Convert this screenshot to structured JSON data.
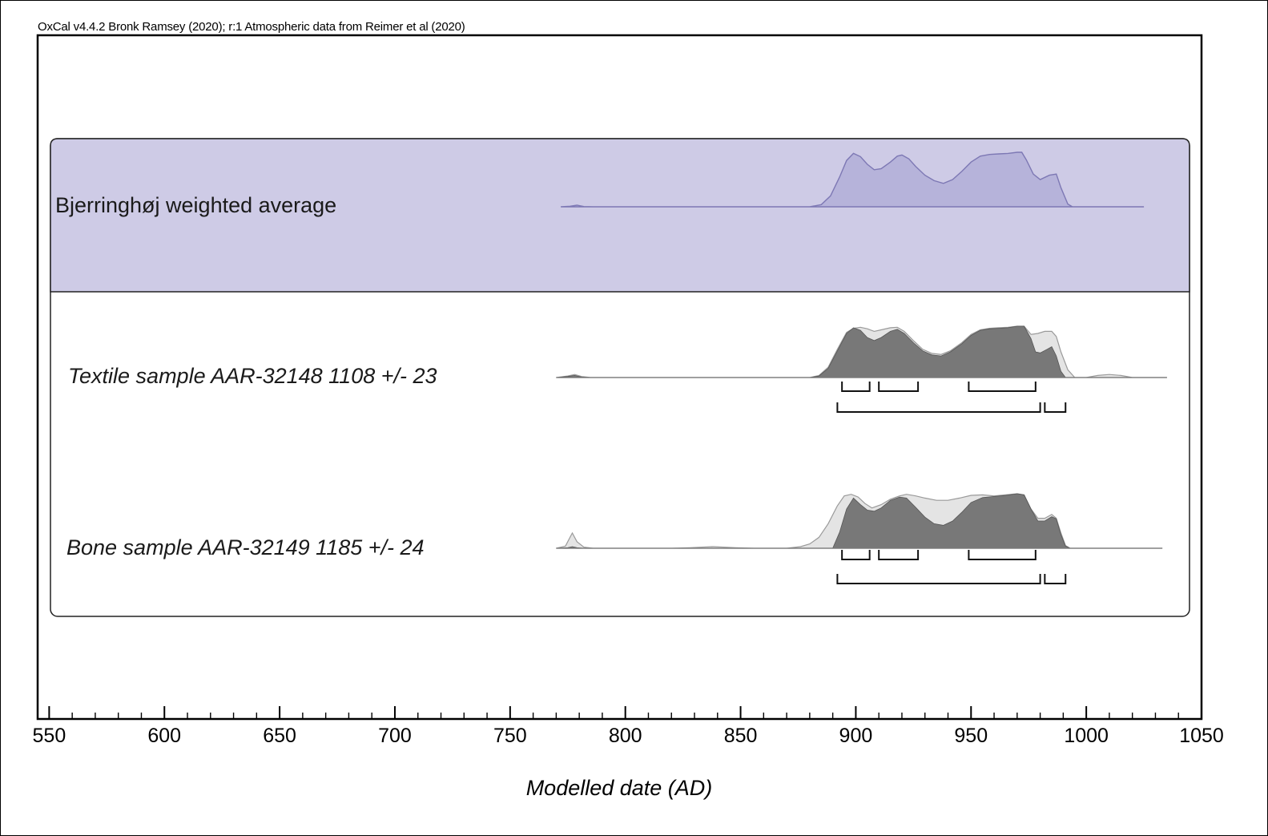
{
  "credit": "OxCal v4.4.2 Bronk Ramsey (2020); r:1 Atmospheric data from Reimer et al (2020)",
  "chart_data": {
    "type": "area",
    "xlabel": "Modelled date (AD)",
    "xlim": [
      545,
      1050
    ],
    "xticks": [
      550,
      600,
      650,
      700,
      750,
      800,
      850,
      900,
      950,
      1000,
      1050
    ],
    "xtick_labels": [
      "550",
      "600",
      "650",
      "700",
      "750",
      "800",
      "850",
      "900",
      "950",
      "1000",
      "1050"
    ],
    "colors": {
      "group_fill": "#cecbe6",
      "avg_fill": "#b6b3da",
      "avg_stroke": "#7d78b4",
      "posterior_fill": "#787878",
      "prior_fill": "#e4e4e4",
      "prior_stroke": "#9a9a9a"
    },
    "group": {
      "name": "Bjerringhøj weighted average"
    },
    "series": [
      {
        "name": "Bjerringhøj weighted average",
        "kind": "weighted_average",
        "posterior": [
          [
            772,
            0
          ],
          [
            776,
            0.01
          ],
          [
            779,
            0.03
          ],
          [
            782,
            0.005
          ],
          [
            786,
            0
          ],
          [
            880,
            0
          ],
          [
            885,
            0.04
          ],
          [
            889,
            0.2
          ],
          [
            893,
            0.55
          ],
          [
            896,
            0.85
          ],
          [
            899,
            0.98
          ],
          [
            902,
            0.92
          ],
          [
            905,
            0.78
          ],
          [
            908,
            0.68
          ],
          [
            911,
            0.7
          ],
          [
            915,
            0.82
          ],
          [
            918,
            0.93
          ],
          [
            920,
            0.95
          ],
          [
            923,
            0.88
          ],
          [
            926,
            0.74
          ],
          [
            930,
            0.58
          ],
          [
            934,
            0.48
          ],
          [
            938,
            0.43
          ],
          [
            942,
            0.5
          ],
          [
            946,
            0.65
          ],
          [
            950,
            0.82
          ],
          [
            954,
            0.93
          ],
          [
            958,
            0.96
          ],
          [
            962,
            0.97
          ],
          [
            966,
            0.98
          ],
          [
            970,
            1.0
          ],
          [
            972,
            1.0
          ],
          [
            974,
            0.86
          ],
          [
            977,
            0.6
          ],
          [
            980,
            0.5
          ],
          [
            984,
            0.58
          ],
          [
            987,
            0.6
          ],
          [
            989,
            0.35
          ],
          [
            992,
            0.05
          ],
          [
            994,
            0
          ],
          [
            1025,
            0
          ]
        ]
      },
      {
        "name": "Textile sample AAR-32148 1108 +/- 23",
        "kind": "date",
        "prior": [
          [
            770,
            0
          ],
          [
            775,
            0.03
          ],
          [
            778,
            0.06
          ],
          [
            781,
            0.02
          ],
          [
            785,
            0
          ],
          [
            880,
            0
          ],
          [
            884,
            0.04
          ],
          [
            888,
            0.2
          ],
          [
            892,
            0.55
          ],
          [
            896,
            0.88
          ],
          [
            899,
            0.96
          ],
          [
            902,
            0.98
          ],
          [
            905,
            0.95
          ],
          [
            908,
            0.9
          ],
          [
            911,
            0.93
          ],
          [
            915,
            0.97
          ],
          [
            918,
            0.98
          ],
          [
            921,
            0.9
          ],
          [
            925,
            0.72
          ],
          [
            929,
            0.55
          ],
          [
            933,
            0.47
          ],
          [
            937,
            0.45
          ],
          [
            941,
            0.52
          ],
          [
            946,
            0.68
          ],
          [
            950,
            0.84
          ],
          [
            954,
            0.93
          ],
          [
            958,
            0.96
          ],
          [
            962,
            0.97
          ],
          [
            966,
            0.98
          ],
          [
            970,
            1.0
          ],
          [
            973,
            1.0
          ],
          [
            976,
            0.84
          ],
          [
            979,
            0.86
          ],
          [
            982,
            0.9
          ],
          [
            985,
            0.9
          ],
          [
            987,
            0.8
          ],
          [
            989,
            0.5
          ],
          [
            992,
            0.15
          ],
          [
            995,
            0
          ],
          [
            1000,
            0
          ],
          [
            1005,
            0.04
          ],
          [
            1010,
            0.06
          ],
          [
            1015,
            0.04
          ],
          [
            1020,
            0
          ],
          [
            1035,
            0
          ]
        ],
        "posterior": [
          [
            770,
            0
          ],
          [
            775,
            0.02
          ],
          [
            778,
            0.04
          ],
          [
            781,
            0.01
          ],
          [
            785,
            0
          ],
          [
            880,
            0
          ],
          [
            884,
            0.03
          ],
          [
            888,
            0.18
          ],
          [
            892,
            0.52
          ],
          [
            896,
            0.86
          ],
          [
            899,
            0.97
          ],
          [
            902,
            0.92
          ],
          [
            905,
            0.78
          ],
          [
            908,
            0.72
          ],
          [
            911,
            0.78
          ],
          [
            915,
            0.9
          ],
          [
            918,
            0.94
          ],
          [
            921,
            0.86
          ],
          [
            925,
            0.68
          ],
          [
            929,
            0.52
          ],
          [
            933,
            0.44
          ],
          [
            937,
            0.42
          ],
          [
            941,
            0.5
          ],
          [
            946,
            0.66
          ],
          [
            950,
            0.82
          ],
          [
            954,
            0.92
          ],
          [
            958,
            0.95
          ],
          [
            962,
            0.96
          ],
          [
            966,
            0.97
          ],
          [
            970,
            1.0
          ],
          [
            973,
            1.0
          ],
          [
            976,
            0.76
          ],
          [
            978,
            0.5
          ],
          [
            980,
            0.48
          ],
          [
            983,
            0.55
          ],
          [
            985,
            0.6
          ],
          [
            987,
            0.42
          ],
          [
            989,
            0.12
          ],
          [
            991,
            0
          ],
          [
            1035,
            0
          ]
        ],
        "ranges_68": [
          [
            894,
            906
          ],
          [
            910,
            927
          ],
          [
            949,
            978
          ]
        ],
        "ranges_95": [
          [
            892,
            980
          ],
          [
            982,
            991
          ]
        ]
      },
      {
        "name": "Bone sample AAR-32149 1185 +/- 24",
        "kind": "date",
        "prior": [
          [
            770,
            0
          ],
          [
            774,
            0.04
          ],
          [
            776,
            0.2
          ],
          [
            777,
            0.28
          ],
          [
            779,
            0.12
          ],
          [
            782,
            0.02
          ],
          [
            786,
            0
          ],
          [
            820,
            0
          ],
          [
            828,
            0.01
          ],
          [
            838,
            0.03
          ],
          [
            848,
            0.01
          ],
          [
            856,
            0
          ],
          [
            870,
            0
          ],
          [
            876,
            0.03
          ],
          [
            880,
            0.08
          ],
          [
            884,
            0.2
          ],
          [
            888,
            0.45
          ],
          [
            892,
            0.78
          ],
          [
            895,
            0.96
          ],
          [
            898,
            0.99
          ],
          [
            901,
            0.94
          ],
          [
            904,
            0.82
          ],
          [
            907,
            0.74
          ],
          [
            911,
            0.8
          ],
          [
            915,
            0.9
          ],
          [
            919,
            0.96
          ],
          [
            922,
            0.99
          ],
          [
            926,
            0.96
          ],
          [
            930,
            0.92
          ],
          [
            935,
            0.88
          ],
          [
            940,
            0.88
          ],
          [
            945,
            0.92
          ],
          [
            950,
            0.97
          ],
          [
            955,
            0.98
          ],
          [
            960,
            0.96
          ],
          [
            965,
            0.98
          ],
          [
            970,
            1.0
          ],
          [
            973,
            0.98
          ],
          [
            976,
            0.72
          ],
          [
            979,
            0.55
          ],
          [
            982,
            0.55
          ],
          [
            985,
            0.62
          ],
          [
            987,
            0.55
          ],
          [
            989,
            0.28
          ],
          [
            991,
            0.05
          ],
          [
            993,
            0
          ],
          [
            1033,
            0
          ]
        ],
        "posterior": [
          [
            770,
            0
          ],
          [
            775,
            0.01
          ],
          [
            777,
            0.03
          ],
          [
            779,
            0.01
          ],
          [
            782,
            0
          ],
          [
            890,
            0
          ],
          [
            893,
            0.3
          ],
          [
            896,
            0.72
          ],
          [
            899,
            0.92
          ],
          [
            902,
            0.8
          ],
          [
            905,
            0.7
          ],
          [
            908,
            0.68
          ],
          [
            911,
            0.74
          ],
          [
            915,
            0.88
          ],
          [
            919,
            0.94
          ],
          [
            922,
            0.92
          ],
          [
            926,
            0.75
          ],
          [
            930,
            0.57
          ],
          [
            934,
            0.45
          ],
          [
            938,
            0.42
          ],
          [
            942,
            0.5
          ],
          [
            946,
            0.66
          ],
          [
            950,
            0.84
          ],
          [
            955,
            0.93
          ],
          [
            960,
            0.95
          ],
          [
            965,
            0.97
          ],
          [
            970,
            1.0
          ],
          [
            973,
            0.98
          ],
          [
            976,
            0.72
          ],
          [
            979,
            0.5
          ],
          [
            982,
            0.5
          ],
          [
            985,
            0.58
          ],
          [
            987,
            0.54
          ],
          [
            989,
            0.25
          ],
          [
            991,
            0.04
          ],
          [
            993,
            0
          ],
          [
            1033,
            0
          ]
        ],
        "ranges_68": [
          [
            894,
            906
          ],
          [
            910,
            927
          ],
          [
            949,
            978
          ]
        ],
        "ranges_95": [
          [
            892,
            980
          ],
          [
            982,
            991
          ]
        ]
      }
    ]
  }
}
